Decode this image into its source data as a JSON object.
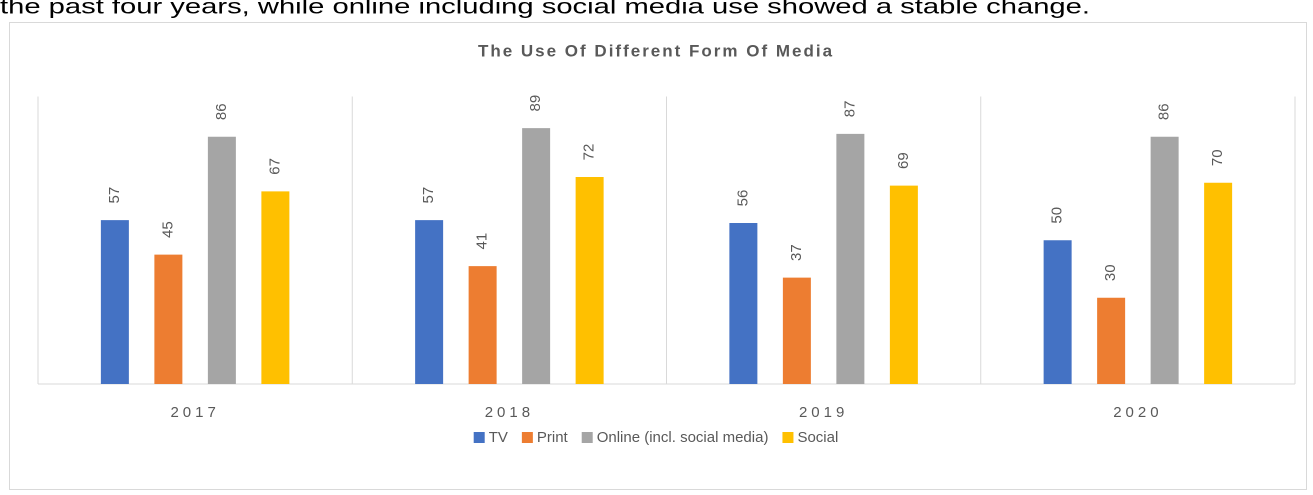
{
  "page_text": "the past four years, while online including social media use showed a stable change.",
  "chart_data": {
    "type": "bar",
    "title": "The Use Of Different Form Of Media",
    "categories": [
      "2017",
      "2018",
      "2019",
      "2020"
    ],
    "series": [
      {
        "name": "TV",
        "color": "#4472c4",
        "values": [
          57,
          57,
          56,
          50
        ]
      },
      {
        "name": "Print",
        "color": "#ed7d31",
        "values": [
          45,
          41,
          37,
          30
        ]
      },
      {
        "name": "Online (incl. social media)",
        "color": "#a5a5a5",
        "values": [
          86,
          89,
          87,
          86
        ]
      },
      {
        "name": "Social",
        "color": "#ffc000",
        "values": [
          67,
          72,
          69,
          70
        ]
      }
    ],
    "ylim": [
      0,
      100
    ],
    "legend": "bottom",
    "data_labels": true
  }
}
